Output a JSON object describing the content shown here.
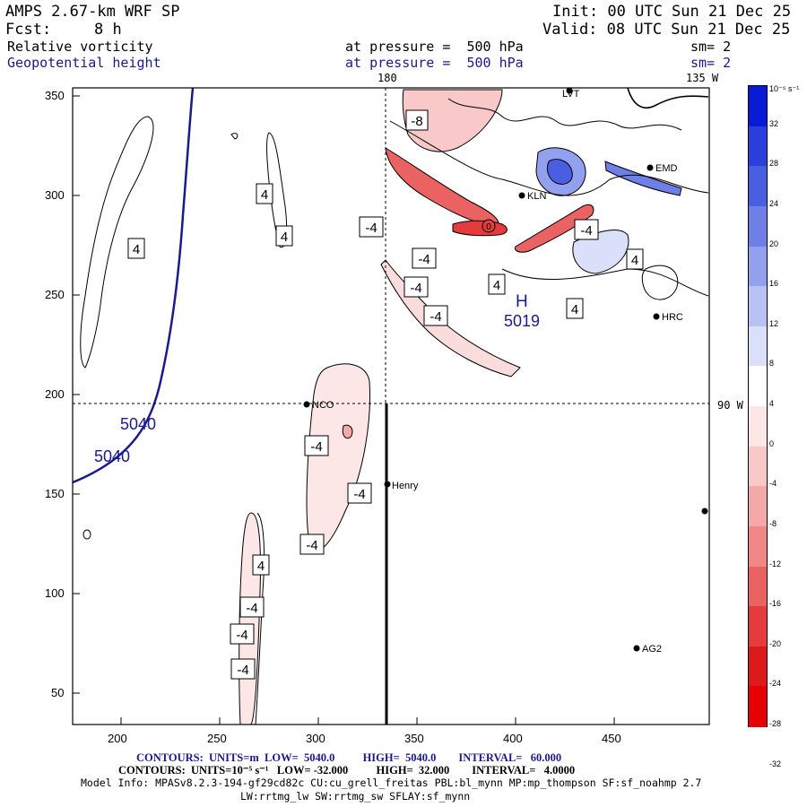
{
  "header": {
    "model": "AMPS 2.67-km WRF SP",
    "init": "Init: 00 UTC Sun 21 Dec 25",
    "fcst_label": "Fcst:",
    "fcst_value": "8 h",
    "valid": "Valid: 08 UTC Sun 21 Dec 25",
    "field1": "Relative vorticity",
    "field1_level": "at pressure =  500 hPa",
    "field1_sm": "sm= 2",
    "field2": "Geopotential height",
    "field2_level": "at pressure =  500 hPa",
    "field2_sm": "sm= 2"
  },
  "map": {
    "lon_180": "180",
    "lon_135w": "135 W",
    "lat_90w": "90 W",
    "x_ticks": [
      "200",
      "250",
      "300",
      "350",
      "400",
      "450"
    ],
    "y_ticks": [
      "350",
      "300",
      "250",
      "200",
      "150",
      "100",
      "50"
    ],
    "stations": [
      {
        "name": "LVT"
      },
      {
        "name": "EMD"
      },
      {
        "name": "KLN"
      },
      {
        "name": "HRC"
      },
      {
        "name": "NCO"
      },
      {
        "name": "Henry"
      },
      {
        "name": "AG2"
      }
    ],
    "height_labels": [
      "5040",
      "5040",
      "5019"
    ],
    "high_marker": "H",
    "contour_labels": [
      "-8",
      "4",
      "4",
      "4",
      "-4",
      "-4",
      "-4",
      "-4",
      "4",
      "-4",
      "4",
      "4",
      "-4",
      "-4",
      "-4",
      "4",
      "-4",
      "-4",
      "-4"
    ],
    "circle_label": "0"
  },
  "colorbar": {
    "unit": "10⁻⁵ s⁻¹",
    "ticks": [
      "32",
      "28",
      "24",
      "20",
      "16",
      "12",
      "8",
      "4",
      "0",
      "-4",
      "-8",
      "-12",
      "-16",
      "-20",
      "-24",
      "-28",
      "-32"
    ],
    "colors": [
      "#0a1bd6",
      "#2a3fdc",
      "#4a5ee2",
      "#6e7fe8",
      "#93a0ee",
      "#b8c1f4",
      "#dbe0fa",
      "#ffffff",
      "#fde6e6",
      "#f9c8c8",
      "#f5a8a8",
      "#f08686",
      "#ea6262",
      "#e43c3c",
      "#dd1a1a",
      "#e60000"
    ]
  },
  "footer": {
    "line1": "CONTOURS:  UNITS=m  LOW=  5040.0          HIGH=  5040.0        INTERVAL=   60.000",
    "line2": "CONTOURS:  UNITS=10⁻⁵ s⁻¹   LOW= -32.000          HIGH=  32.000        INTERVAL=   4.0000",
    "line3": "Model Info: MPASv8.2.3-194-gf29cd82c CU:cu_grell_freitas PBL:bl_mynn MP:mp_thompson SF:sf_noahmp 2.7",
    "line4": "LW:rrtmg_lw SW:rrtmg_sw SFLAY:sf_mynn"
  }
}
